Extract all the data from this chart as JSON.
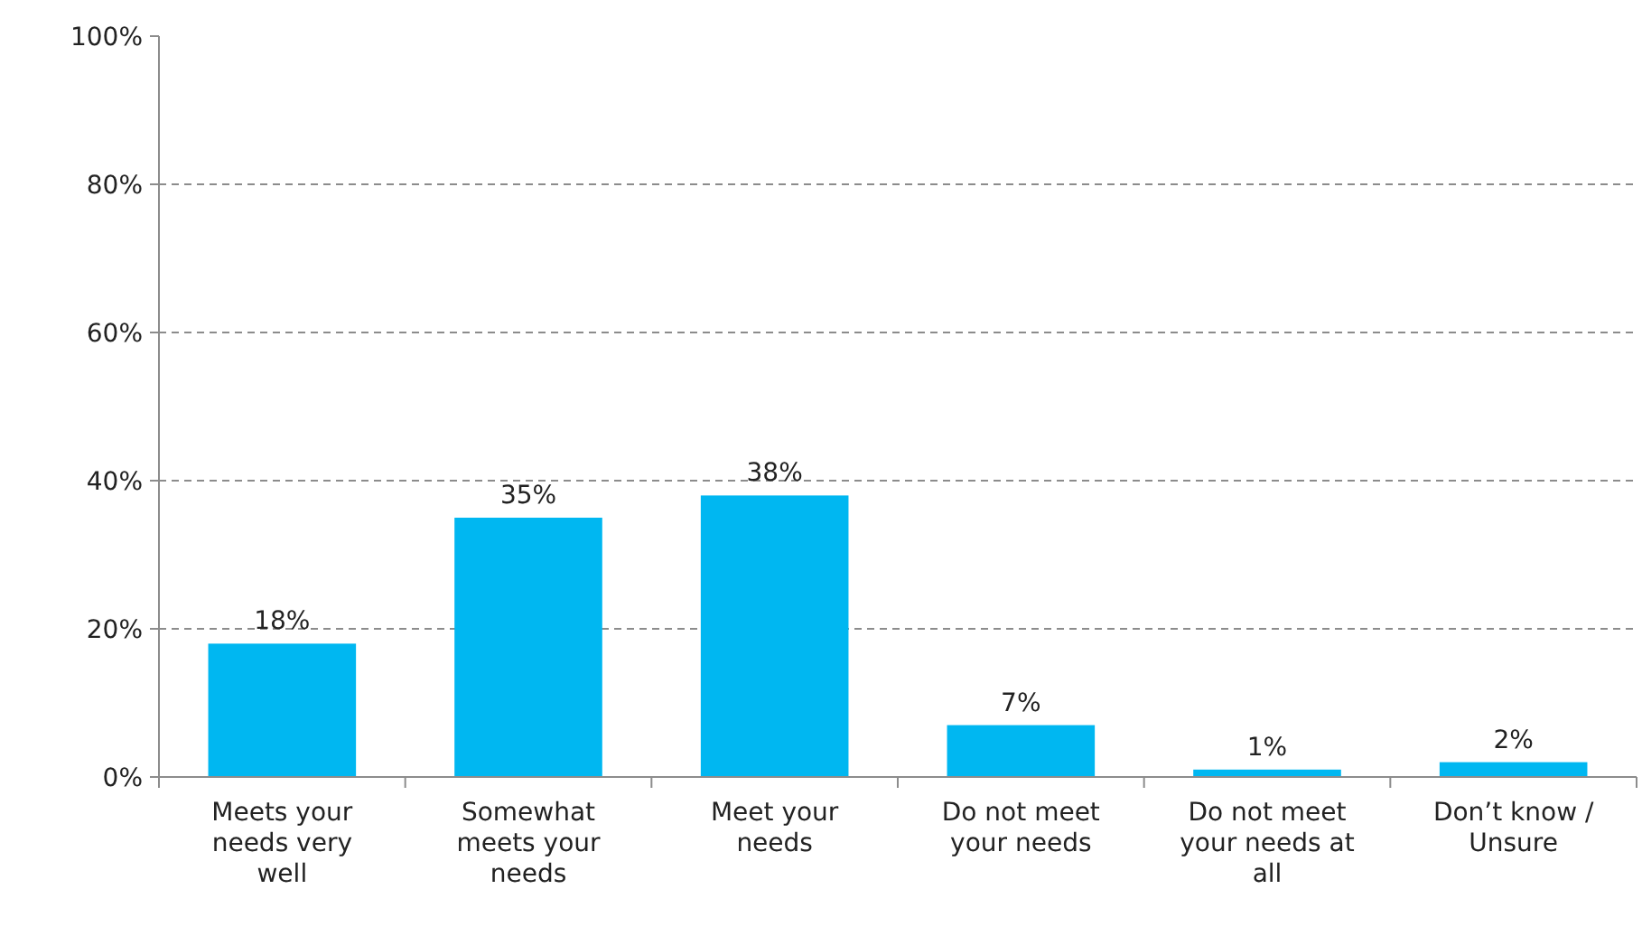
{
  "chart_data": {
    "type": "bar",
    "categories": [
      "Meets your needs very well",
      "Somewhat meets your needs",
      "Meet your needs",
      "Do not meet your needs",
      "Do not meet your needs at all",
      "Don’t know / Unsure"
    ],
    "values": [
      18,
      35,
      38,
      7,
      1,
      2
    ],
    "value_labels": [
      "18%",
      "35%",
      "38%",
      "7%",
      "1%",
      "2%"
    ],
    "color": "#00b7f1",
    "ylim": [
      0,
      100
    ],
    "yticks": [
      {
        "value": 0,
        "label": "0%"
      },
      {
        "value": 20,
        "label": "20%"
      },
      {
        "value": 40,
        "label": "40%"
      },
      {
        "value": 60,
        "label": "60%"
      },
      {
        "value": 80,
        "label": "80%"
      },
      {
        "value": 100,
        "label": "100%"
      }
    ],
    "grid": "y"
  }
}
